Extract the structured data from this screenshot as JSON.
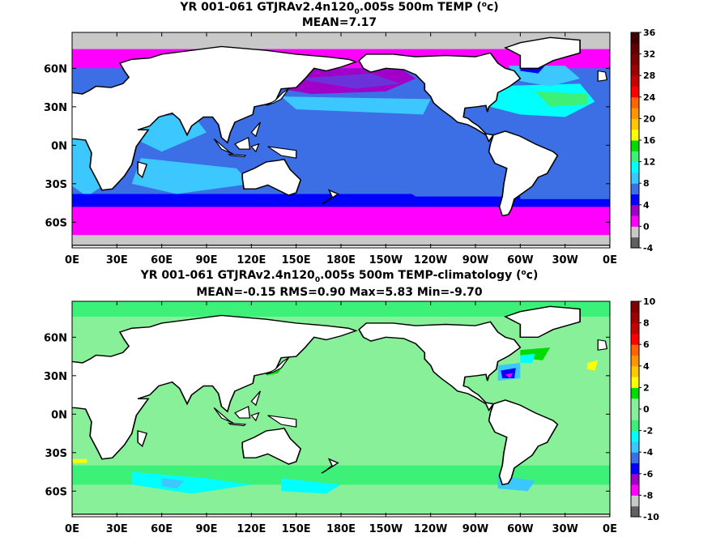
{
  "chart_data": [
    {
      "type": "heatmap",
      "title_line1": "YR 001-061 GTJRAv2.4n120",
      "title_sub": "0",
      "title_line1b": ".005s 500m TEMP (",
      "title_sup": "o",
      "title_line1c": "c)",
      "title_line2": "MEAN=7.17",
      "xlabel": "",
      "ylabel": "",
      "x_ticks": [
        "0E",
        "30E",
        "60E",
        "90E",
        "120E",
        "150E",
        "180E",
        "150W",
        "120W",
        "90W",
        "60W",
        "30W",
        "0E"
      ],
      "y_ticks": [
        "60N",
        "30N",
        "0N",
        "30S",
        "60S"
      ],
      "xlim": [
        0,
        360
      ],
      "ylim": [
        -80,
        88
      ],
      "y_tick_values": [
        60,
        30,
        0,
        -30,
        -60
      ],
      "colorbar": {
        "ticks": [
          "36",
          "32",
          "28",
          "24",
          "20",
          "16",
          "12",
          "8",
          "4",
          "0",
          "-4"
        ],
        "bounds": [
          -4,
          36
        ],
        "colors": [
          "#606060",
          "#c8c8c8",
          "#ff00ff",
          "#a000c8",
          "#0000ff",
          "#3c6ee6",
          "#3cc8ff",
          "#00ffff",
          "#3cf078",
          "#00dc00",
          "#ffff00",
          "#ffc800",
          "#ff9600",
          "#ff6400",
          "#ff0000",
          "#c80000",
          "#a00000",
          "#800000",
          "#600000",
          "#400000"
        ]
      },
      "region_values_degC": {
        "tropics": 8,
        "north_pacific": 4,
        "north_atlantic_subtropical": 14,
        "southern_ocean": -2,
        "arctic": 0,
        "polar_edge": 0
      }
    },
    {
      "type": "heatmap",
      "title_line1": "YR 001-061 GTJRAv2.4n120",
      "title_sub": "0",
      "title_line1b": ".005s 500m TEMP-climatology (",
      "title_sup": "o",
      "title_line1c": "c)",
      "title_line2": "MEAN=-0.15   RMS=0.90   Max=5.83   Min=-9.70",
      "xlabel": "",
      "ylabel": "",
      "x_ticks": [
        "0E",
        "30E",
        "60E",
        "90E",
        "120E",
        "150E",
        "180E",
        "150W",
        "120W",
        "90W",
        "60W",
        "30W",
        "0E"
      ],
      "y_ticks": [
        "60N",
        "30N",
        "0N",
        "30S",
        "60S"
      ],
      "xlim": [
        0,
        360
      ],
      "ylim": [
        -80,
        88
      ],
      "y_tick_values": [
        60,
        30,
        0,
        -30,
        -60
      ],
      "colorbar": {
        "ticks": [
          "10",
          "8",
          "6",
          "4",
          "2",
          "0",
          "-2",
          "-4",
          "-6",
          "-8",
          "-10"
        ],
        "bounds": [
          -10,
          10
        ],
        "colors": [
          "#606060",
          "#c8c8c8",
          "#ff00ff",
          "#a000c8",
          "#0000ff",
          "#3c6ee6",
          "#3cc8ff",
          "#00ffff",
          "#3cf078",
          "#88f098",
          "#88f098",
          "#00dc00",
          "#ffff00",
          "#ffc800",
          "#ff9600",
          "#ff6400",
          "#ff0000",
          "#c80000",
          "#a00000",
          "#800000"
        ]
      },
      "summary": {
        "mean": -0.15,
        "rms": 0.9,
        "max": 5.83,
        "min": -9.7
      }
    }
  ]
}
